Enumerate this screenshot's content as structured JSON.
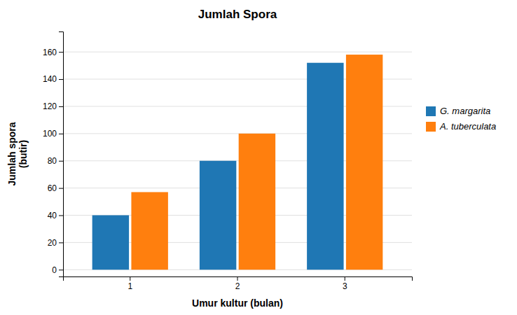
{
  "chart_data": {
    "type": "bar",
    "title": "Jumlah Spora",
    "xlabel": "Umur kultur (bulan)",
    "ylabel": "Jumlah spora\n(butir)",
    "categories": [
      "1",
      "2",
      "3"
    ],
    "series": [
      {
        "name": "G. margarita",
        "values": [
          40,
          80,
          152
        ]
      },
      {
        "name": "A. tuberculata",
        "values": [
          57,
          100,
          158
        ]
      }
    ],
    "ylim": [
      -5,
      175
    ],
    "yticks": [
      0,
      20,
      40,
      60,
      80,
      100,
      120,
      140,
      160
    ],
    "grid": true,
    "legend": "right"
  }
}
